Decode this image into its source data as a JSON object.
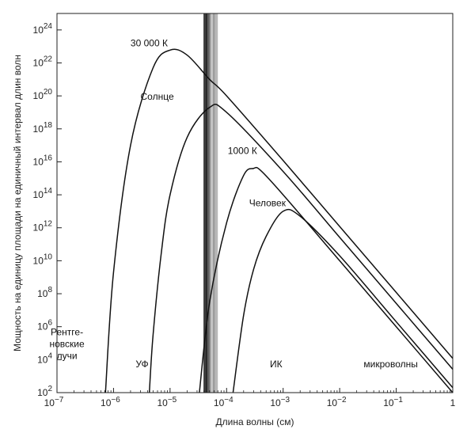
{
  "chart_data": {
    "type": "line",
    "title": "",
    "xlabel": "Длина волны (см)",
    "ylabel": "Мощность на единицу площади на единичный интервал длин волн",
    "x_scale": "log",
    "y_scale": "log",
    "xlim": [
      1e-07,
      1
    ],
    "ylim": [
      100,
      1e+25
    ],
    "grid": false,
    "x_ticks": [
      {
        "value": 1e-07,
        "base": "10",
        "exp": "−7"
      },
      {
        "value": 1e-06,
        "base": "10",
        "exp": "−6"
      },
      {
        "value": 1e-05,
        "base": "10",
        "exp": "−5"
      },
      {
        "value": 0.0001,
        "base": "10",
        "exp": "−4"
      },
      {
        "value": 0.001,
        "base": "10",
        "exp": "−3"
      },
      {
        "value": 0.01,
        "base": "10",
        "exp": "−2"
      },
      {
        "value": 0.1,
        "base": "10",
        "exp": "−1"
      },
      {
        "value": 1,
        "base": "1",
        "exp": ""
      }
    ],
    "y_ticks": [
      {
        "value": 100.0,
        "base": "10",
        "exp": "2"
      },
      {
        "value": 10000.0,
        "base": "10",
        "exp": "4"
      },
      {
        "value": 1000000.0,
        "base": "10",
        "exp": "6"
      },
      {
        "value": 100000000.0,
        "base": "10",
        "exp": "8"
      },
      {
        "value": 10000000000.0,
        "base": "10",
        "exp": "10"
      },
      {
        "value": 1000000000000.0,
        "base": "10",
        "exp": "12"
      },
      {
        "value": 100000000000000.0,
        "base": "10",
        "exp": "14"
      },
      {
        "value": 1e+16,
        "base": "10",
        "exp": "16"
      },
      {
        "value": 1e+18,
        "base": "10",
        "exp": "18"
      },
      {
        "value": 1e+20,
        "base": "10",
        "exp": "20"
      },
      {
        "value": 1e+22,
        "base": "10",
        "exp": "22"
      },
      {
        "value": 1e+24,
        "base": "10",
        "exp": "24"
      }
    ],
    "series": [
      {
        "name": "30 000 К",
        "x": [
          7.2e-07,
          1e-06,
          2e-06,
          5e-06,
          1e-05,
          2e-05,
          5e-05,
          0.0001,
          0.001,
          0.01,
          0.1,
          1
        ],
        "y": [
          100.0,
          2000000000.0,
          1e+17,
          5e+21,
          6e+22,
          3e+22,
          1e+21,
          1e+20,
          1.2e+16,
          1200000000000.0,
          120000000.0,
          12000.0
        ]
      },
      {
        "name": "Солнце",
        "x": [
          4.3e-06,
          5e-06,
          7e-06,
          1e-05,
          2e-05,
          5e-05,
          0.0001,
          0.001,
          0.01,
          0.1,
          1
        ],
        "y": [
          100.0,
          300000.0,
          30000000000.0,
          100000000000000.0,
          3e+17,
          2e+19,
          1e+19,
          2600000000000000.0,
          260000000000.0,
          26000000.0,
          2600.0
        ]
      },
      {
        "name": "1000 К",
        "x": [
          3.3e-05,
          5e-05,
          0.0001,
          0.0002,
          0.0003,
          0.0004,
          0.001,
          0.01,
          0.1,
          1
        ],
        "y": [
          100.0,
          30000000.0,
          2000000000000.0,
          1500000000000000.0,
          4000000000000000.0,
          3000000000000000.0,
          100000000000000.0,
          10000000000.0,
          1000000.0,
          100.0
        ]
      },
      {
        "name": "Человек",
        "x": [
          0.00013,
          0.0002,
          0.0003,
          0.0005,
          0.001,
          0.002,
          0.01,
          0.1,
          1
        ],
        "y": [
          100.0,
          5000000.0,
          3000000000.0,
          300000000000.0,
          10000000000000.0,
          5000000000000.0,
          20000000000.0,
          2000000.0,
          200.0
        ]
      }
    ],
    "curve_labels": [
      {
        "text": "30 000 К",
        "x": 2e-06,
        "y": 1e+23
      },
      {
        "text": "Солнце",
        "x": 3e-06,
        "y": 6e+19
      },
      {
        "text": "1000 К",
        "x": 0.000105,
        "y": 3e+16
      },
      {
        "text": "Человек",
        "x": 0.00025,
        "y": 20000000000000.0
      }
    ],
    "region_labels": [
      {
        "lines": [
          "Рентге-",
          "новские",
          "лучи"
        ],
        "x": 1.5e-07,
        "y": 300000.0
      },
      {
        "lines": [
          "УФ"
        ],
        "x": 3.2e-06,
        "y": 3500.0
      },
      {
        "lines": [
          "ИК"
        ],
        "x": 0.00075,
        "y": 3500.0
      },
      {
        "lines": [
          "микроволны"
        ],
        "x": 0.08,
        "y": 3500.0
      }
    ],
    "visible_band": {
      "stripes": [
        {
          "from": 3.9e-05,
          "to": 4.3e-05,
          "color": "#3b3b3b"
        },
        {
          "from": 4.3e-05,
          "to": 4.6e-05,
          "color": "#202020"
        },
        {
          "from": 4.6e-05,
          "to": 4.95e-05,
          "color": "#5a5a5a"
        },
        {
          "from": 4.95e-05,
          "to": 5.25e-05,
          "color": "#8a8a8a"
        },
        {
          "from": 5.25e-05,
          "to": 5.7e-05,
          "color": "#c4c4c4"
        },
        {
          "from": 5.7e-05,
          "to": 6.2e-05,
          "color": "#9c9c9c"
        },
        {
          "from": 6.2e-05,
          "to": 7e-05,
          "color": "#b8b8b8"
        }
      ]
    }
  }
}
